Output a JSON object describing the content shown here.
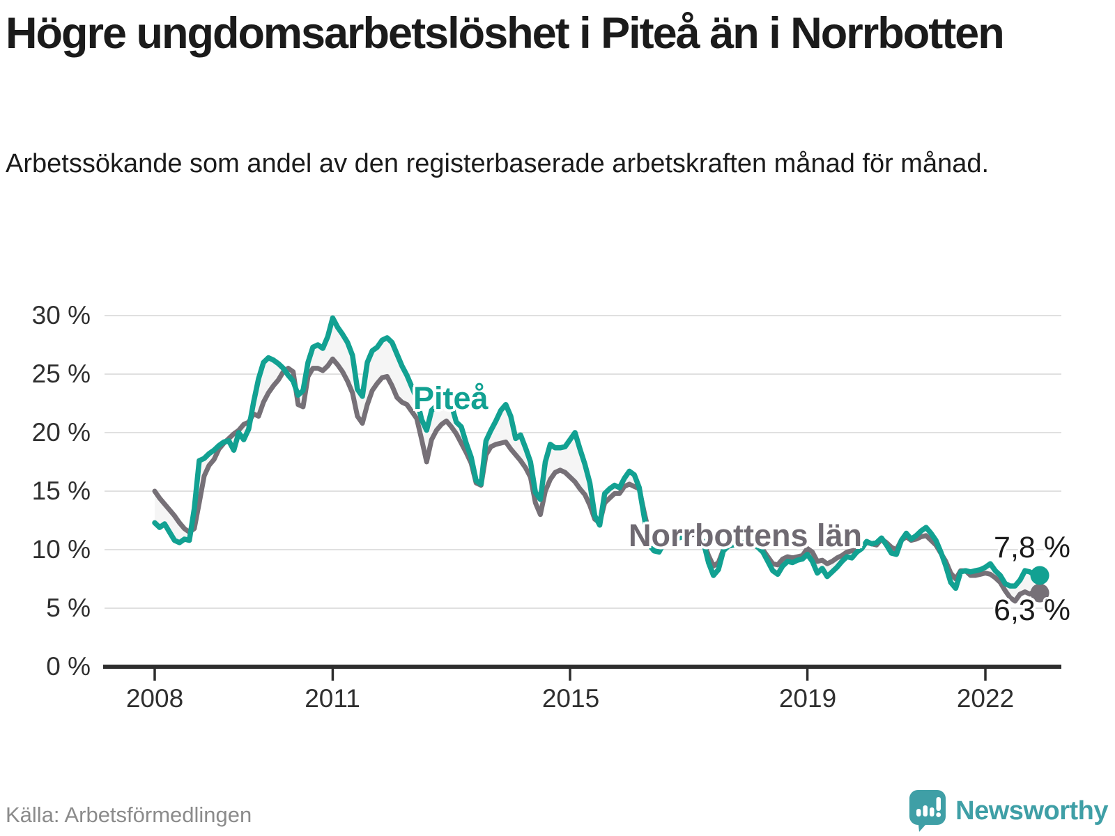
{
  "header": {
    "title": "Högre ungdomsarbetslöshet i Piteå än i Norrbotten",
    "subtitle": "Arbetssökande som andel av den registerbaserade arbetskraften månad för månad."
  },
  "footer": {
    "source": "Källa: Arbetsförmedlingen",
    "brand": {
      "name": "Newsworthy",
      "logo_icon": "speech-bubble-bar-chart-icon",
      "color": "#3f9fa6"
    }
  },
  "chart_data": {
    "type": "line",
    "unit": "percent",
    "frequency": "monthly",
    "x_start": "2008-01",
    "x_end": "2022-12",
    "grid": "horizontal",
    "ylim": [
      0,
      30.8
    ],
    "gap_fill_color": "#f5f5f5",
    "axis_color": "#2d2d2d",
    "gridline_color": "#e0e0e0",
    "x_axis": {
      "ticks": [
        {
          "label": "2008",
          "month_index": 0
        },
        {
          "label": "2011",
          "month_index": 36
        },
        {
          "label": "2015",
          "month_index": 84
        },
        {
          "label": "2019",
          "month_index": 132
        },
        {
          "label": "2022",
          "month_index": 168
        }
      ]
    },
    "y_axis": {
      "ticks": [
        {
          "label": "30 %",
          "value": 30
        },
        {
          "label": "25 %",
          "value": 25
        },
        {
          "label": "20 %",
          "value": 20
        },
        {
          "label": "15 %",
          "value": 15
        },
        {
          "label": "10 %",
          "value": 10
        },
        {
          "label": "5 %",
          "value": 5
        },
        {
          "label": "0 %",
          "value": 0
        }
      ]
    },
    "series": [
      {
        "name": "Piteå",
        "color": "#12a192",
        "end_label": "7,8 %",
        "end_value": 7.8,
        "values": [
          12.3,
          11.9,
          12.2,
          11.5,
          10.8,
          10.6,
          10.9,
          10.8,
          13.5,
          17.6,
          17.8,
          18.2,
          18.5,
          18.9,
          19.2,
          19.3,
          18.5,
          20.0,
          19.4,
          20.3,
          22.6,
          24.6,
          26.0,
          26.4,
          26.2,
          25.9,
          25.5,
          24.9,
          24.4,
          23.2,
          23.6,
          26.0,
          27.3,
          27.5,
          27.2,
          28.2,
          29.8,
          29.0,
          28.4,
          27.7,
          26.6,
          23.7,
          23.1,
          26.0,
          27.0,
          27.3,
          27.9,
          28.1,
          27.7,
          26.7,
          25.7,
          24.9,
          23.9,
          22.9,
          21.1,
          20.2,
          21.9,
          22.3,
          22.8,
          22.8,
          22.4,
          20.9,
          20.5,
          19.1,
          17.9,
          15.9,
          15.6,
          19.3,
          20.2,
          21.0,
          21.9,
          22.4,
          21.4,
          19.5,
          19.8,
          18.7,
          17.5,
          14.9,
          14.3,
          17.5,
          19.0,
          18.7,
          18.7,
          18.8,
          19.4,
          20.0,
          18.6,
          17.3,
          15.7,
          12.9,
          12.1,
          14.8,
          15.2,
          15.5,
          15.3,
          16.1,
          16.7,
          16.4,
          15.3,
          12.8,
          10.4,
          9.9,
          9.8,
          10.6,
          10.8,
          10.9,
          11.0,
          11.2,
          11.4,
          11.6,
          11.3,
          10.6,
          8.9,
          7.8,
          8.3,
          9.9,
          10.3,
          10.4,
          10.5,
          10.6,
          10.7,
          10.5,
          10.2,
          9.8,
          9.0,
          8.2,
          7.9,
          8.6,
          9.0,
          8.9,
          9.1,
          9.2,
          9.6,
          9.0,
          8.0,
          8.4,
          7.7,
          8.1,
          8.5,
          9.0,
          9.4,
          9.3,
          9.8,
          10.1,
          10.7,
          10.5,
          10.6,
          11.0,
          10.4,
          9.7,
          9.6,
          10.8,
          11.4,
          10.9,
          11.2,
          11.6,
          11.9,
          11.4,
          10.8,
          9.8,
          8.6,
          7.2,
          6.7,
          8.1,
          8.2,
          8.1,
          8.2,
          8.3,
          8.5,
          8.8,
          8.2,
          7.8,
          7.1,
          6.9,
          6.9,
          7.4,
          8.2,
          8.1,
          7.8,
          7.8
        ]
      },
      {
        "name": "Norrbottens län",
        "color": "#767077",
        "end_label": "6,3 %",
        "end_value": 6.3,
        "values": [
          15.0,
          14.4,
          13.9,
          13.4,
          12.9,
          12.3,
          11.8,
          11.5,
          11.8,
          14.0,
          16.3,
          17.2,
          17.7,
          18.6,
          19.1,
          19.5,
          19.9,
          20.2,
          20.7,
          20.9,
          21.6,
          21.4,
          22.6,
          23.4,
          24.0,
          24.5,
          25.2,
          25.5,
          25.2,
          22.4,
          22.2,
          24.8,
          25.5,
          25.5,
          25.3,
          25.7,
          26.3,
          25.8,
          25.2,
          24.4,
          23.4,
          21.4,
          20.8,
          22.4,
          23.6,
          24.2,
          24.7,
          24.8,
          24.0,
          23.0,
          22.6,
          22.4,
          21.8,
          21.2,
          19.4,
          17.5,
          19.4,
          20.2,
          20.7,
          21.0,
          20.5,
          19.9,
          19.1,
          18.3,
          17.4,
          15.7,
          15.5,
          18.1,
          18.8,
          19.0,
          19.1,
          19.2,
          18.6,
          18.1,
          17.6,
          17.0,
          16.2,
          14.0,
          13.0,
          15.0,
          16.0,
          16.6,
          16.8,
          16.6,
          16.2,
          15.8,
          15.2,
          14.7,
          13.8,
          12.6,
          12.3,
          14.0,
          14.4,
          14.8,
          14.8,
          15.4,
          15.6,
          15.4,
          15.2,
          13.2,
          11.4,
          10.6,
          10.3,
          10.7,
          10.8,
          10.9,
          11.0,
          11.1,
          11.2,
          11.3,
          11.1,
          10.7,
          9.5,
          8.6,
          8.9,
          10.0,
          10.3,
          10.4,
          10.4,
          10.5,
          10.5,
          10.4,
          10.2,
          10.0,
          9.4,
          8.8,
          8.7,
          9.2,
          9.4,
          9.3,
          9.4,
          9.5,
          10.1,
          9.8,
          9.0,
          9.1,
          8.8,
          9.0,
          9.3,
          9.5,
          9.8,
          9.9,
          10.0,
          10.3,
          10.6,
          10.5,
          10.4,
          10.9,
          10.6,
          10.2,
          10.0,
          10.8,
          11.1,
          10.8,
          10.9,
          11.1,
          11.2,
          10.8,
          10.4,
          9.7,
          9.0,
          8.0,
          7.5,
          8.2,
          8.2,
          7.8,
          7.8,
          7.9,
          8.0,
          7.9,
          7.6,
          7.2,
          6.5,
          5.9,
          5.6,
          6.2,
          6.4,
          6.2,
          6.5,
          6.3
        ]
      }
    ]
  }
}
